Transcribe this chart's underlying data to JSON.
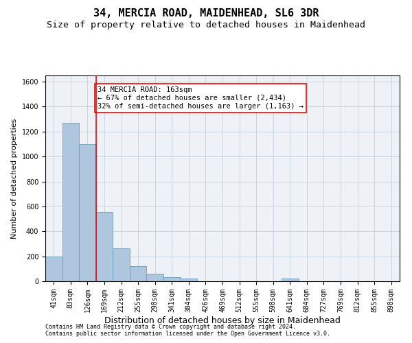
{
  "title1": "34, MERCIA ROAD, MAIDENHEAD, SL6 3DR",
  "title2": "Size of property relative to detached houses in Maidenhead",
  "xlabel": "Distribution of detached houses by size in Maidenhead",
  "ylabel": "Number of detached properties",
  "footnote1": "Contains HM Land Registry data © Crown copyright and database right 2024.",
  "footnote2": "Contains public sector information licensed under the Open Government Licence v3.0.",
  "bar_labels": [
    "41sqm",
    "83sqm",
    "126sqm",
    "169sqm",
    "212sqm",
    "255sqm",
    "298sqm",
    "341sqm",
    "384sqm",
    "426sqm",
    "469sqm",
    "512sqm",
    "555sqm",
    "598sqm",
    "641sqm",
    "684sqm",
    "727sqm",
    "769sqm",
    "812sqm",
    "855sqm",
    "898sqm"
  ],
  "bar_values": [
    197,
    1270,
    1100,
    555,
    265,
    120,
    58,
    32,
    20,
    0,
    0,
    0,
    0,
    0,
    20,
    0,
    0,
    0,
    0,
    0,
    0
  ],
  "bar_color": "#aec6de",
  "bar_edge_color": "#6a9ec0",
  "ylim": [
    0,
    1650
  ],
  "yticks": [
    0,
    200,
    400,
    600,
    800,
    1000,
    1200,
    1400,
    1600
  ],
  "vline_color": "red",
  "vline_pos": 2.5,
  "annotation_text_line1": "34 MERCIA ROAD: 163sqm",
  "annotation_text_line2": "← 67% of detached houses are smaller (2,434)",
  "annotation_text_line3": "32% of semi-detached houses are larger (1,163) →",
  "bg_color": "#eef2f7",
  "grid_color": "#c5d0de",
  "title1_fontsize": 11,
  "title2_fontsize": 9.5,
  "xlabel_fontsize": 9,
  "ylabel_fontsize": 8,
  "tick_fontsize": 7,
  "annot_fontsize": 7.5,
  "footnote_fontsize": 6
}
